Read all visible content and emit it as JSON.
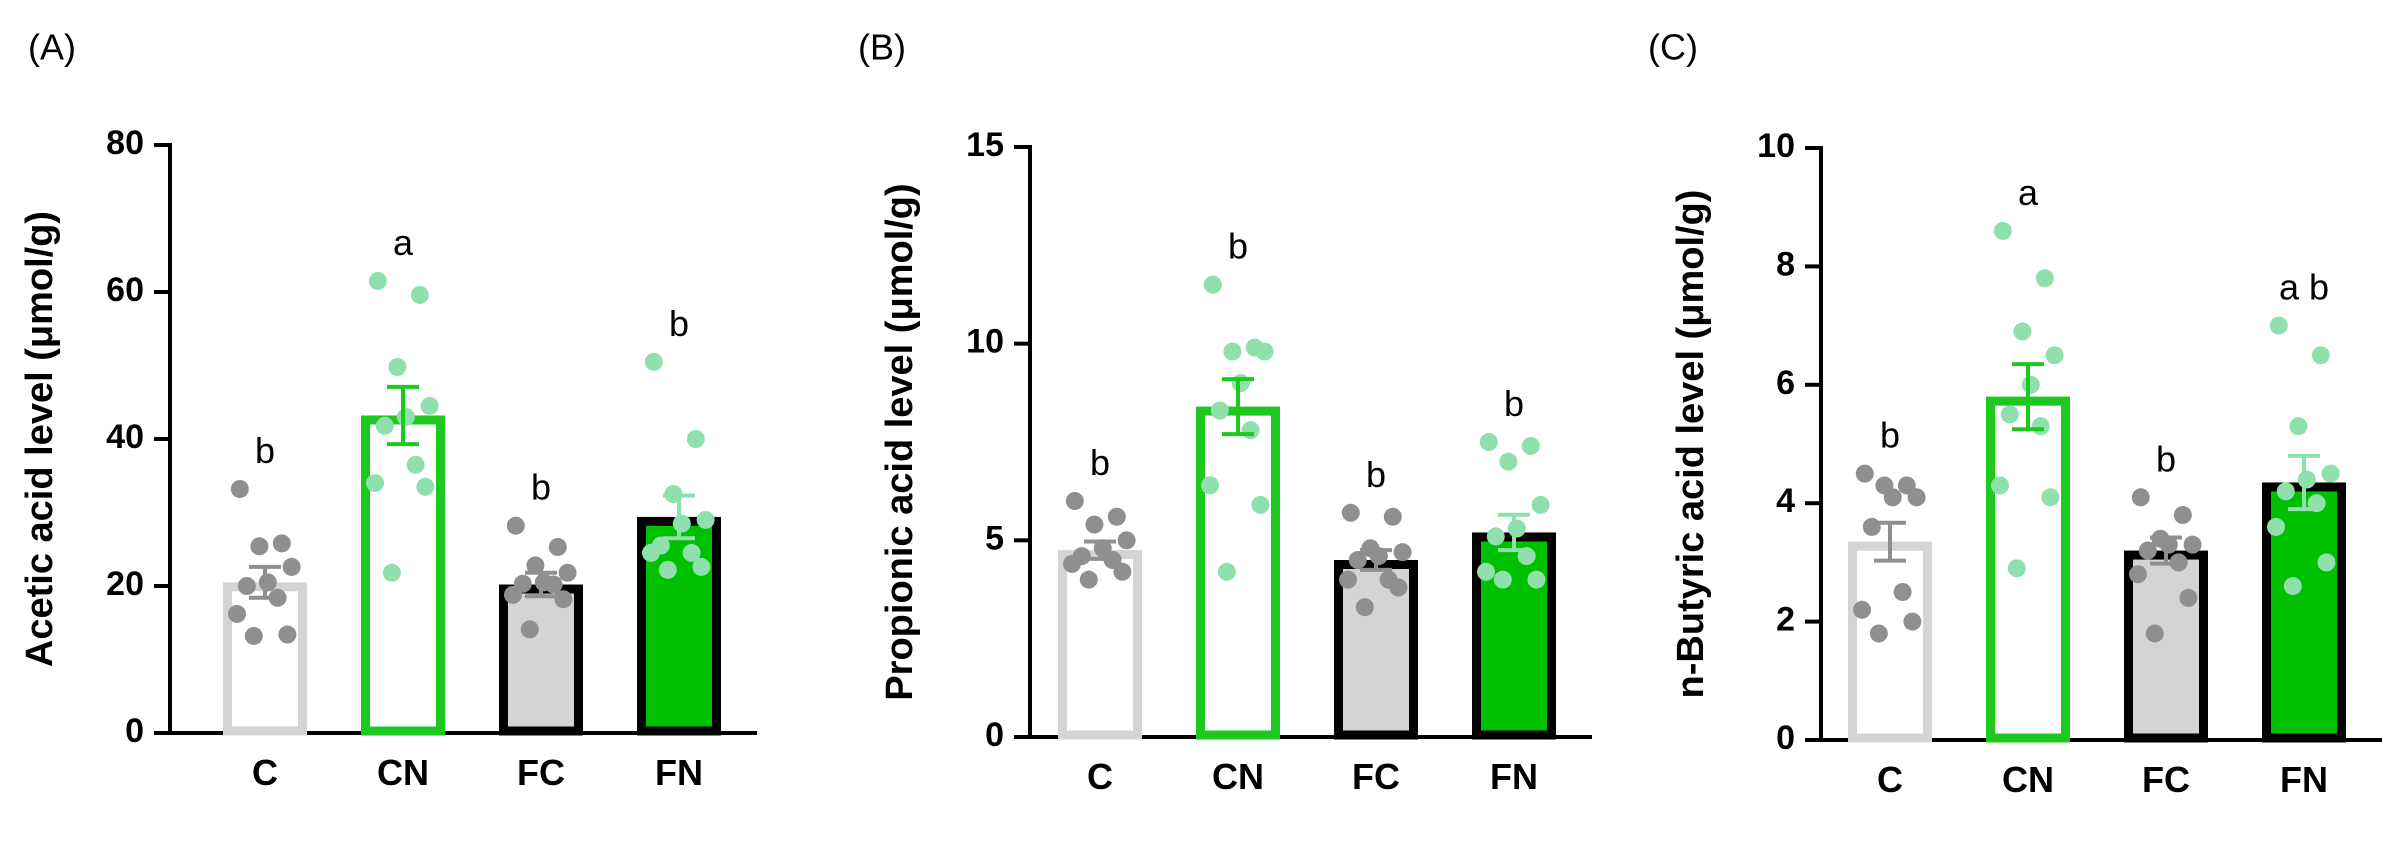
{
  "chart_data": [
    {
      "type": "bar",
      "panel_label": "(A)",
      "ylabel": "Acetic acid level (μmol/g)",
      "ylim": [
        0,
        80
      ],
      "yticks": [
        0,
        20,
        40,
        60,
        80
      ],
      "categories": [
        "C",
        "CN",
        "FC",
        "FN"
      ],
      "means": [
        20.5,
        43.2,
        20.2,
        29.4
      ],
      "sem": [
        2.1,
        3.9,
        1.6,
        2.9
      ],
      "letters": [
        "b",
        "a",
        "b",
        "b"
      ],
      "points": [
        [
          33.2,
          25.8,
          25.4,
          22.6,
          20.5,
          20.0,
          18.4,
          16.2,
          13.4,
          13.2
        ],
        [
          61.5,
          59.6,
          49.8,
          44.5,
          43.0,
          41.8,
          36.5,
          34.0,
          33.5,
          21.8
        ],
        [
          28.2,
          25.3,
          22.8,
          21.8,
          20.5,
          20.3,
          20.2,
          18.8,
          18.2,
          14.1
        ],
        [
          50.5,
          40.0,
          32.5,
          29.0,
          28.5,
          25.5,
          24.5,
          24.5,
          22.6,
          22.2
        ]
      ]
    },
    {
      "type": "bar",
      "panel_label": "(B)",
      "ylabel": "Propionic acid level (μmol/g)",
      "ylim": [
        0,
        15
      ],
      "yticks": [
        0,
        5,
        10,
        15
      ],
      "categories": [
        "C",
        "CN",
        "FC",
        "FN"
      ],
      "means": [
        4.75,
        8.4,
        4.5,
        5.2
      ],
      "sem": [
        0.22,
        0.7,
        0.25,
        0.45
      ],
      "letters": [
        "b",
        "b",
        "b",
        "b"
      ],
      "points": [
        [
          6.0,
          5.6,
          5.4,
          5.0,
          4.8,
          4.6,
          4.5,
          4.4,
          4.2,
          4.0
        ],
        [
          11.5,
          9.9,
          9.8,
          9.8,
          9.0,
          8.3,
          7.8,
          6.4,
          5.9,
          4.2
        ],
        [
          5.7,
          5.6,
          4.8,
          4.7,
          4.6,
          4.5,
          4.0,
          4.0,
          3.8,
          3.3
        ],
        [
          7.5,
          7.4,
          7.0,
          5.9,
          5.3,
          5.1,
          4.6,
          4.2,
          4.0,
          4.0
        ]
      ]
    },
    {
      "type": "bar",
      "panel_label": "(C)",
      "ylabel": "n-Butyric acid level (μmol/g)",
      "ylim": [
        0,
        10
      ],
      "yticks": [
        0,
        2,
        4,
        6,
        8,
        10
      ],
      "categories": [
        "C",
        "CN",
        "FC",
        "FN"
      ],
      "means": [
        3.35,
        5.8,
        3.2,
        4.35
      ],
      "sem": [
        0.32,
        0.55,
        0.22,
        0.45
      ],
      "letters": [
        "b",
        "a",
        "b",
        "a b"
      ],
      "points": [
        [
          4.5,
          4.3,
          4.3,
          4.1,
          4.1,
          3.6,
          2.5,
          2.2,
          2.0,
          1.8
        ],
        [
          8.6,
          7.8,
          6.9,
          6.5,
          6.0,
          5.5,
          5.3,
          4.3,
          4.1,
          2.9
        ],
        [
          4.1,
          3.8,
          3.4,
          3.3,
          3.3,
          3.2,
          3.0,
          2.8,
          2.4,
          1.8
        ],
        [
          7.0,
          6.5,
          5.3,
          4.5,
          4.4,
          4.2,
          4.0,
          3.6,
          3.0,
          2.6
        ]
      ]
    }
  ],
  "style": {
    "bar_fill": [
      "#ffffff",
      "#ffffff",
      "#d4d4d4",
      "#00c000"
    ],
    "bar_edge": [
      "#d4d4d4",
      "#1ec81e",
      "#000000",
      "#000000"
    ],
    "point_color": [
      "#8f8f8f",
      "#8fe0ad",
      "#8f8f8f",
      "#8fe0ad"
    ],
    "errorbar_color": [
      "#8f8f8f",
      "#1ec81e",
      "#8f8f8f",
      "#8fe0ad"
    ],
    "axis_color": "#000000",
    "text_color": "#000000"
  }
}
